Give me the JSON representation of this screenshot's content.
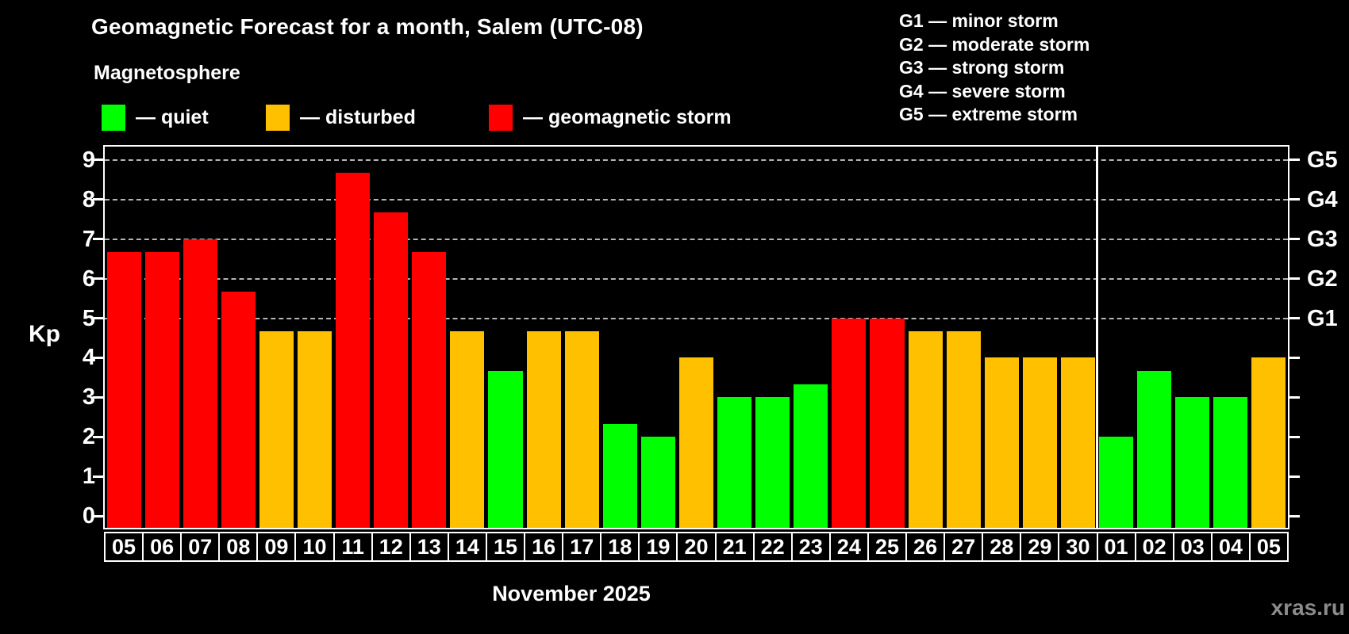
{
  "header": {
    "title": "Geomagnetic Forecast for a month, Salem (UTC-08)",
    "subtitle": "Magnetosphere"
  },
  "legend": {
    "items": [
      {
        "name": "quiet",
        "label": "— quiet",
        "color": "#00ff00"
      },
      {
        "name": "disturbed",
        "label": "— disturbed",
        "color": "#ffc000"
      },
      {
        "name": "storm",
        "label": "— geomagnetic storm",
        "color": "#ff0000"
      }
    ]
  },
  "storm_scale_legend": [
    "G1 — minor storm",
    "G2 — moderate storm",
    "G3 — strong storm",
    "G4 — severe storm",
    "G5 — extreme storm"
  ],
  "chart_data": {
    "type": "bar",
    "title": "Geomagnetic Forecast for a month, Salem (UTC-08)",
    "ylabel": "Kp",
    "xlabel": "November 2025",
    "ylim": [
      0,
      9
    ],
    "yticks": [
      0,
      1,
      2,
      3,
      4,
      5,
      6,
      7,
      8,
      9
    ],
    "grid": "dashed horizontal lines at Kp 5-9 only",
    "right_axis": [
      {
        "kp": 5,
        "label": "G1"
      },
      {
        "kp": 6,
        "label": "G2"
      },
      {
        "kp": 7,
        "label": "G3"
      },
      {
        "kp": 8,
        "label": "G4"
      },
      {
        "kp": 9,
        "label": "G5"
      }
    ],
    "categories": [
      "05",
      "06",
      "07",
      "08",
      "09",
      "10",
      "11",
      "12",
      "13",
      "14",
      "15",
      "16",
      "17",
      "18",
      "19",
      "20",
      "21",
      "22",
      "23",
      "24",
      "25",
      "26",
      "27",
      "28",
      "29",
      "30",
      "01",
      "02",
      "03",
      "04",
      "05"
    ],
    "values": [
      6.67,
      6.67,
      7,
      5.67,
      4.67,
      4.67,
      8.67,
      7.67,
      6.67,
      4.67,
      3.67,
      4.67,
      4.67,
      2.33,
      2,
      4,
      3,
      3,
      3.33,
      5,
      5,
      4.67,
      4.67,
      4,
      4,
      4,
      2,
      3.67,
      3,
      3,
      4
    ],
    "statuses": [
      "storm",
      "storm",
      "storm",
      "storm",
      "disturbed",
      "disturbed",
      "storm",
      "storm",
      "storm",
      "disturbed",
      "quiet",
      "disturbed",
      "disturbed",
      "quiet",
      "quiet",
      "disturbed",
      "quiet",
      "quiet",
      "quiet",
      "storm",
      "storm",
      "disturbed",
      "disturbed",
      "disturbed",
      "disturbed",
      "disturbed",
      "quiet",
      "quiet",
      "quiet",
      "quiet",
      "disturbed"
    ],
    "month_divider_after_index": 25,
    "colors": {
      "quiet": "#00ff00",
      "disturbed": "#ffc000",
      "storm": "#ff0000"
    }
  },
  "footer": {
    "xlabel": "November 2025",
    "watermark": "xras.ru"
  }
}
